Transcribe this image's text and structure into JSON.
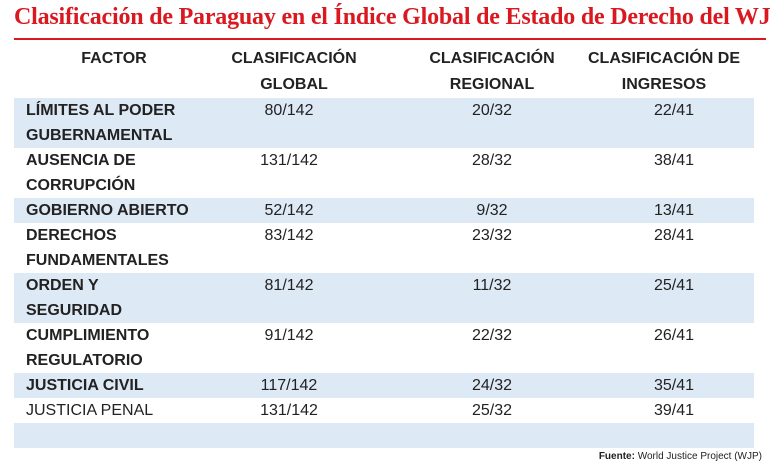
{
  "title": "Clasificación de Paraguay en el Índice Global de Estado de Derecho del WJP",
  "columns": {
    "factor": "FACTOR",
    "global": [
      "CLASIFICACIÓN",
      "GLOBAL"
    ],
    "regional": [
      "CLASIFICACIÓN",
      "REGIONAL"
    ],
    "income": [
      "CLASIFICACIÓN DE",
      "INGRESOS"
    ]
  },
  "rows": [
    {
      "factor": [
        "LÍMITES AL PODER",
        "GUBERNAMENTAL"
      ],
      "global": "80/142",
      "regional": "20/32",
      "income": "22/41"
    },
    {
      "factor": [
        "AUSENCIA DE",
        "CORRUPCIÓN"
      ],
      "global": "131/142",
      "regional": "28/32",
      "income": "38/41"
    },
    {
      "factor": [
        "GOBIERNO ABIERTO"
      ],
      "global": "52/142",
      "regional": "9/32",
      "income": "13/41"
    },
    {
      "factor": [
        "DERECHOS",
        "FUNDAMENTALES"
      ],
      "global": "83/142",
      "regional": "23/32",
      "income": "28/41"
    },
    {
      "factor": [
        "ORDEN Y",
        "SEGURIDAD"
      ],
      "global": "81/142",
      "regional": "11/32",
      "income": "25/41"
    },
    {
      "factor": [
        "CUMPLIMIENTO",
        "REGULATORIO"
      ],
      "global": "91/142",
      "regional": "22/32",
      "income": "26/41"
    },
    {
      "factor": [
        "JUSTICIA CIVIL"
      ],
      "global": "117/142",
      "regional": "24/32",
      "income": "35/41"
    },
    {
      "factor": [
        "JUSTICIA PENAL"
      ],
      "global": "131/142",
      "regional": "25/32",
      "income": "39/41"
    }
  ],
  "source": {
    "label": "Fuente:",
    "text": "World Justice Project (WJP)"
  },
  "colors": {
    "title": "#d9181f",
    "row_shade": "#dde9f4"
  }
}
